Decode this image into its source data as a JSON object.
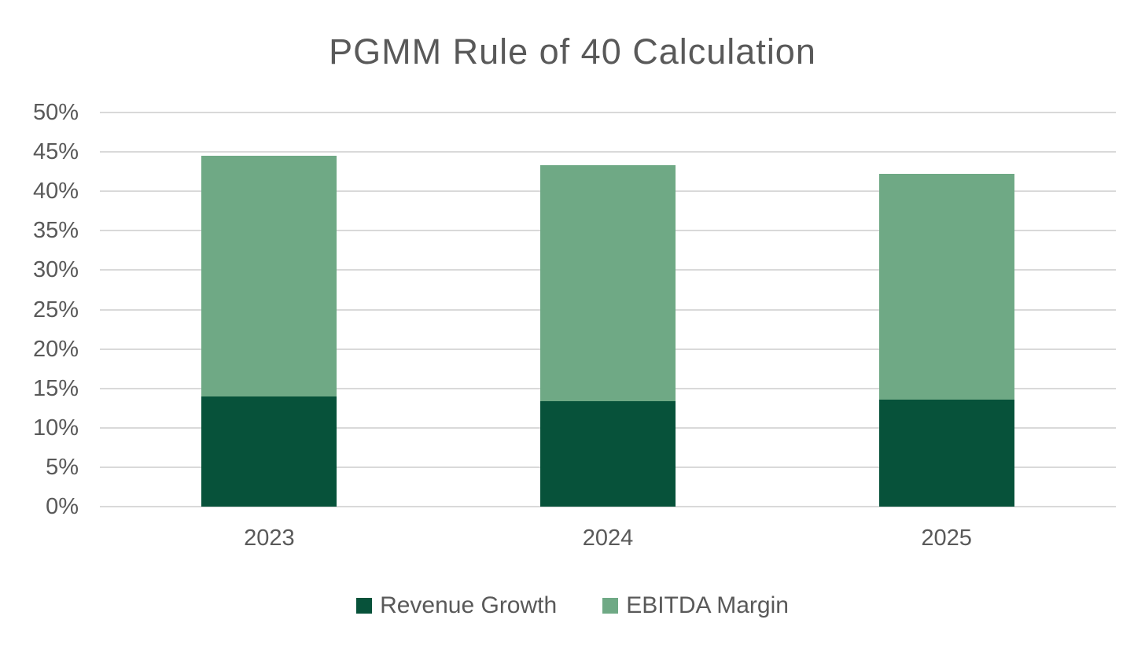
{
  "title": "PGMM Rule of 40 Calculation",
  "colors": {
    "revenue_growth": "#07523A",
    "ebitda_margin": "#6FA985",
    "grid": "#D9D9D9",
    "axis_text": "#595959",
    "background": "#FFFFFF"
  },
  "chart_data": {
    "type": "bar",
    "stacked": true,
    "title": "PGMM Rule of 40 Calculation",
    "categories": [
      "2023",
      "2024",
      "2025"
    ],
    "series": [
      {
        "name": "Revenue Growth",
        "color": "#07523A",
        "values": [
          14.0,
          13.4,
          13.6
        ]
      },
      {
        "name": "EBITDA Margin",
        "color": "#6FA985",
        "values": [
          30.5,
          29.9,
          28.6
        ]
      }
    ],
    "totals": [
      44.5,
      43.3,
      42.2
    ],
    "unit": "%",
    "xlabel": "",
    "ylabel": "",
    "ylim": [
      0,
      50
    ],
    "y_tick_step": 5,
    "y_tick_labels": [
      "0%",
      "5%",
      "10%",
      "15%",
      "20%",
      "25%",
      "30%",
      "35%",
      "40%",
      "45%",
      "50%"
    ],
    "grid": "horizontal",
    "legend_position": "bottom"
  },
  "legend": {
    "items": [
      {
        "label": "Revenue Growth",
        "color": "#07523A"
      },
      {
        "label": "EBITDA Margin",
        "color": "#6FA985"
      }
    ]
  }
}
